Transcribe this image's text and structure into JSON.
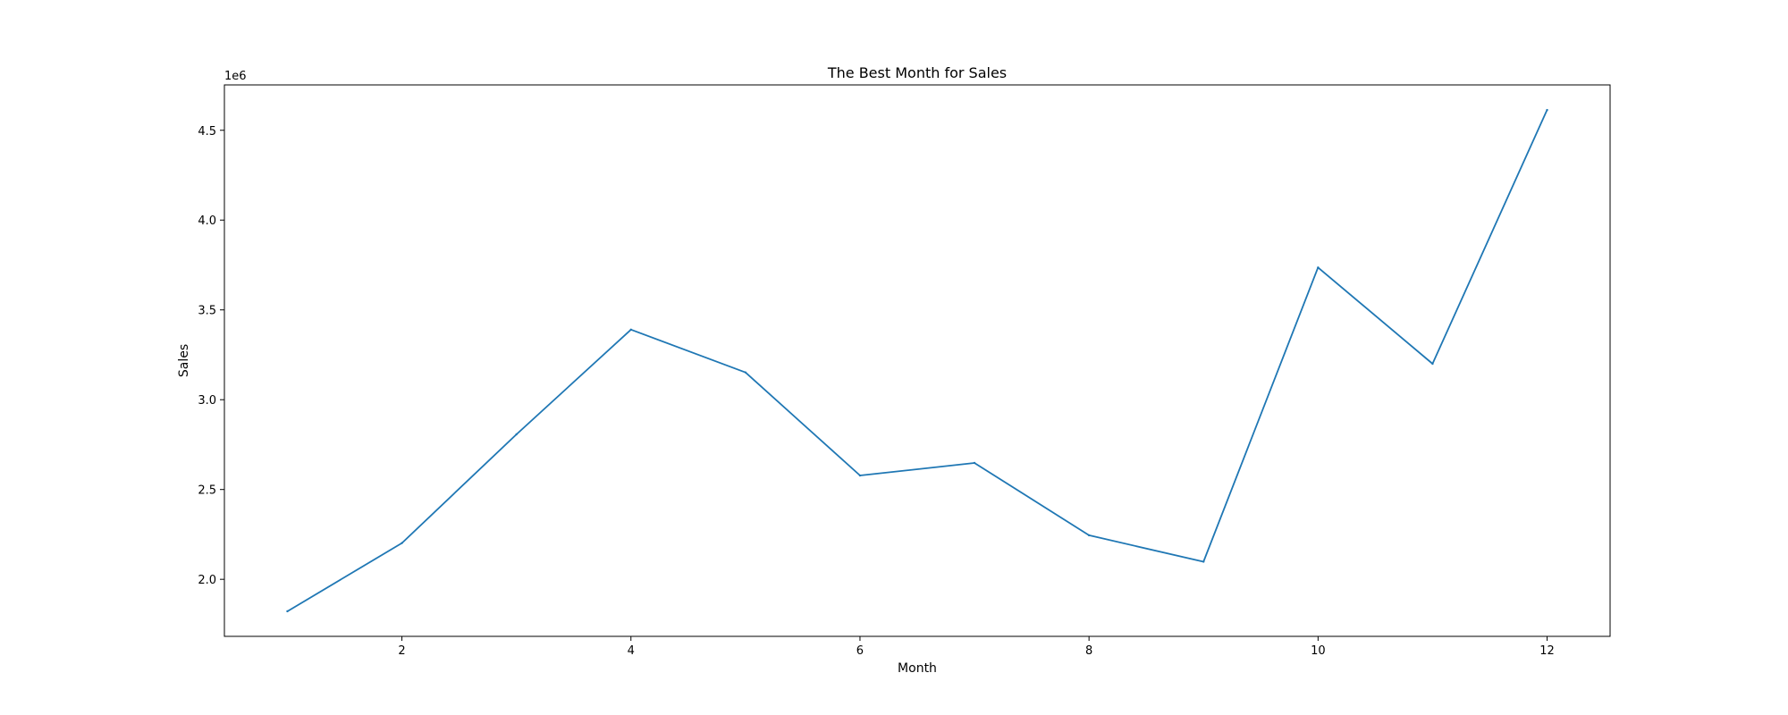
{
  "chart_data": {
    "type": "line",
    "title": "The Best Month for Sales",
    "xlabel": "Month",
    "ylabel": "Sales",
    "y_offset_text": "1e6",
    "x": [
      1,
      2,
      3,
      4,
      5,
      6,
      7,
      8,
      9,
      10,
      11,
      12
    ],
    "series": [
      {
        "values": [
          1822000,
          2202000,
          2807000,
          3390000,
          3152000,
          2578000,
          2648000,
          2245000,
          2098000,
          3736000,
          3200000,
          4613000
        ]
      }
    ],
    "x_ticks": [
      2,
      4,
      6,
      8,
      10,
      12
    ],
    "x_tick_labels": [
      "2",
      "4",
      "6",
      "8",
      "10",
      "12"
    ],
    "y_ticks": [
      2000000,
      2500000,
      3000000,
      3500000,
      4000000,
      4500000
    ],
    "y_tick_labels": [
      "2.0",
      "2.5",
      "3.0",
      "3.5",
      "4.0",
      "4.5"
    ],
    "xlim": [
      0.45,
      12.55
    ],
    "ylim": [
      1682450,
      4752550
    ],
    "grid": false,
    "line_color": "#1f77b4"
  }
}
